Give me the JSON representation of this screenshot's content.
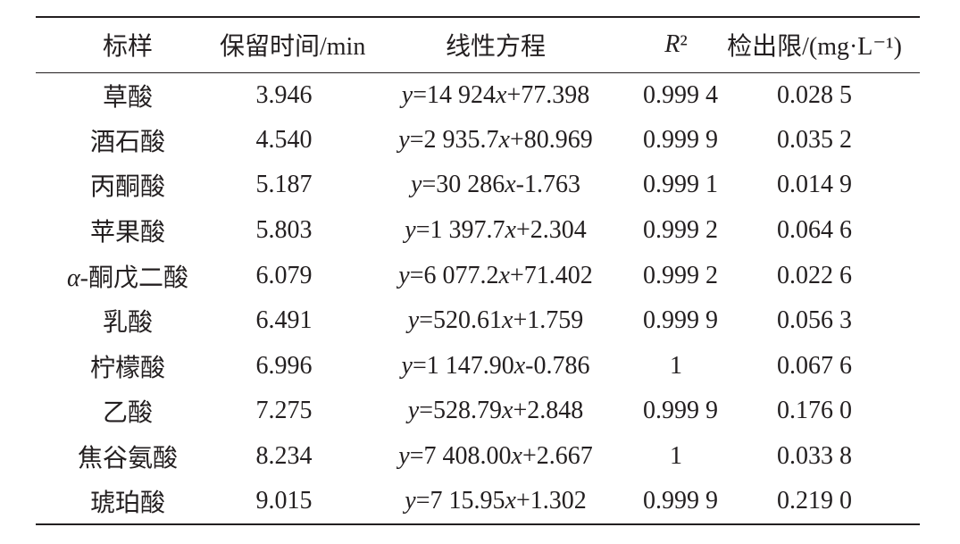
{
  "table": {
    "headers": [
      "标样",
      "保留时间/min",
      "线性方程",
      "R²",
      "检出限/(mg·L⁻¹)"
    ],
    "rows": [
      [
        "草酸",
        "3.946",
        "y=14 924x+77.398",
        "0.999 4",
        "0.028 5"
      ],
      [
        "酒石酸",
        "4.540",
        "y=2 935.7x+80.969",
        "0.999 9",
        "0.035 2"
      ],
      [
        "丙酮酸",
        "5.187",
        "y=30 286x-1.763",
        "0.999 1",
        "0.014 9"
      ],
      [
        "苹果酸",
        "5.803",
        "y=1 397.7x+2.304",
        "0.999 2",
        "0.064 6"
      ],
      [
        "α-酮戊二酸",
        "6.079",
        "y=6 077.2x+71.402",
        "0.999 2",
        "0.022 6"
      ],
      [
        "乳酸",
        "6.491",
        "y=520.61x+1.759",
        "0.999 9",
        "0.056 3"
      ],
      [
        "柠檬酸",
        "6.996",
        "y=1 147.90x-0.786",
        "1",
        "0.067 6"
      ],
      [
        "乙酸",
        "7.275",
        "y=528.79x+2.848",
        "0.999 9",
        "0.176 0"
      ],
      [
        "焦谷氨酸",
        "8.234",
        "y=7 408.00x+2.667",
        "1",
        "0.033 8"
      ],
      [
        "琥珀酸",
        "9.015",
        "y=7 15.95x+1.302",
        "0.999 9",
        "0.219 0"
      ]
    ]
  }
}
